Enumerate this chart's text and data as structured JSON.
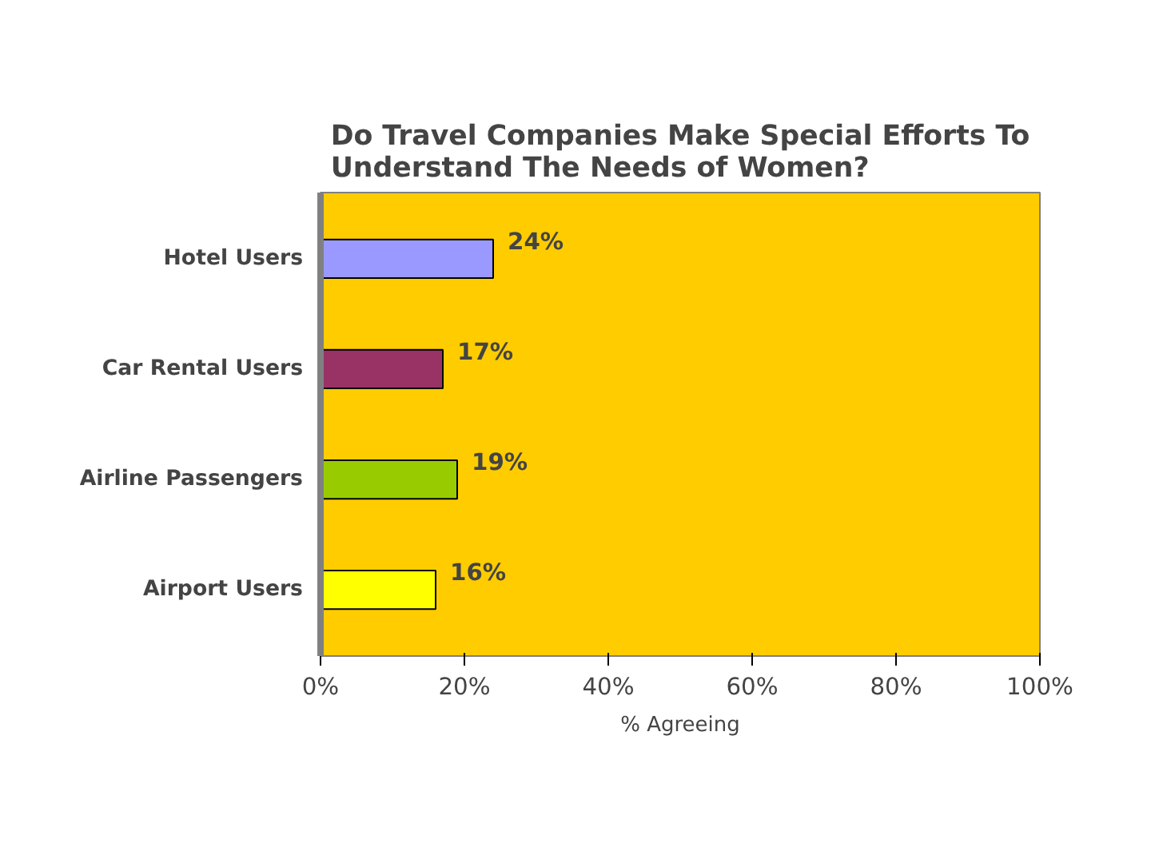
{
  "chart_data": {
    "type": "bar",
    "orientation": "horizontal",
    "title": "Do Travel Companies Make Special Efforts To\nUnderstand The Needs of Women?",
    "xlabel": "% Agreeing",
    "categories": [
      "Hotel Users",
      "Car Rental Users",
      "Airline Passengers",
      "Airport Users"
    ],
    "values": [
      24,
      17,
      19,
      16
    ],
    "colors": [
      "#9999ff",
      "#993366",
      "#99cc00",
      "#ffff00"
    ],
    "value_labels": [
      "24%",
      "17%",
      "19%",
      "16%"
    ],
    "xlim": [
      0,
      100
    ],
    "xticks": [
      {
        "value": 0,
        "label": "0%"
      },
      {
        "value": 20,
        "label": "20%"
      },
      {
        "value": 40,
        "label": "40%"
      },
      {
        "value": 60,
        "label": "60%"
      },
      {
        "value": 80,
        "label": "80%"
      },
      {
        "value": 100,
        "label": "100%"
      }
    ],
    "grid": false
  }
}
